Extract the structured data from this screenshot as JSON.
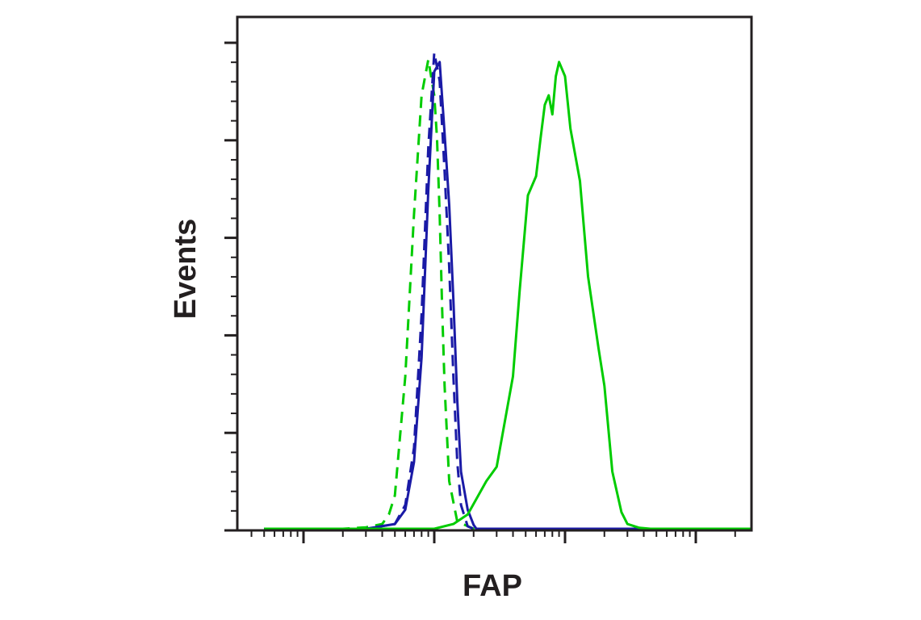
{
  "chart_data": {
    "type": "line",
    "title": "",
    "xlabel": "FAP",
    "ylabel": "Events",
    "x_scale": "log",
    "xlim": [
      1,
      300000
    ],
    "ylim": [
      0,
      1.05
    ],
    "x_decades": [
      10,
      100,
      1000,
      10000
    ],
    "y_major_ticks": [
      0,
      0.2,
      0.4,
      0.6,
      0.8,
      1.0
    ],
    "grid": false,
    "legend": "none",
    "series": [
      {
        "color": "#00cc00",
        "dash": "dashed",
        "x": [
          5,
          20,
          30,
          40,
          45,
          50,
          60,
          70,
          80,
          90,
          100,
          105,
          110,
          115,
          120,
          130,
          150,
          200,
          500,
          1000,
          10000,
          300000
        ],
        "y": [
          0,
          0,
          0.003,
          0.01,
          0.03,
          0.07,
          0.32,
          0.66,
          0.91,
          0.985,
          0.91,
          0.82,
          0.66,
          0.46,
          0.3,
          0.1,
          0.015,
          0,
          0,
          0,
          0,
          0
        ]
      },
      {
        "color": "#1a1aa6",
        "dash": "dashed",
        "x": [
          5,
          30,
          50,
          60,
          70,
          80,
          90,
          100,
          110,
          120,
          130,
          140,
          150,
          160,
          180,
          200,
          300,
          1000,
          300000
        ],
        "y": [
          0,
          0,
          0.01,
          0.05,
          0.17,
          0.45,
          0.8,
          1.0,
          0.94,
          0.75,
          0.55,
          0.32,
          0.14,
          0.05,
          0.005,
          0,
          0,
          0,
          0
        ]
      },
      {
        "color": "#1a1aa6",
        "dash": "solid",
        "x": [
          5,
          30,
          50,
          60,
          70,
          80,
          90,
          100,
          110,
          120,
          130,
          140,
          150,
          160,
          180,
          200,
          210,
          300,
          1000,
          300000
        ],
        "y": [
          0,
          0,
          0.01,
          0.04,
          0.14,
          0.36,
          0.71,
          0.96,
          0.98,
          0.83,
          0.68,
          0.48,
          0.27,
          0.12,
          0.04,
          0.008,
          0,
          0,
          0,
          0
        ]
      },
      {
        "color": "#00cc00",
        "dash": "solid",
        "x": [
          5,
          100,
          140,
          180,
          250,
          300,
          400,
          450,
          520,
          600,
          650,
          700,
          750,
          800,
          850,
          900,
          1000,
          1100,
          1300,
          1500,
          1800,
          2000,
          2300,
          2700,
          3000,
          3700,
          4500,
          6000,
          10000,
          300000
        ],
        "y": [
          0,
          0,
          0.01,
          0.03,
          0.1,
          0.13,
          0.32,
          0.5,
          0.7,
          0.74,
          0.82,
          0.89,
          0.91,
          0.87,
          0.95,
          0.98,
          0.95,
          0.84,
          0.73,
          0.53,
          0.38,
          0.3,
          0.12,
          0.035,
          0.01,
          0.002,
          0,
          0,
          0,
          0
        ]
      }
    ]
  }
}
